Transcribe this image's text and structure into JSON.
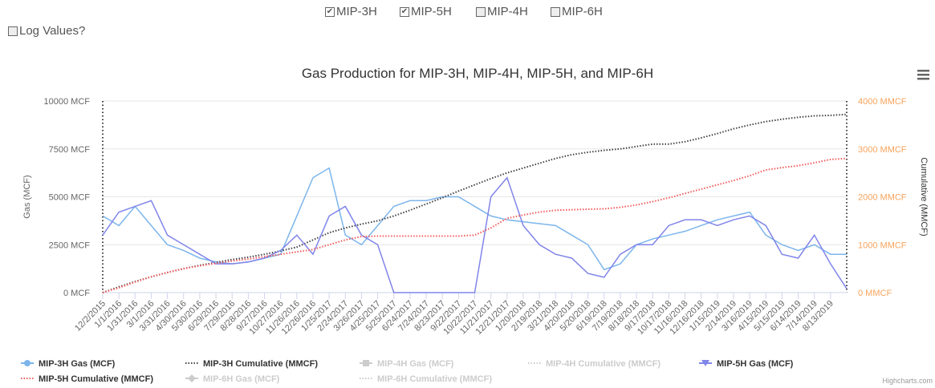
{
  "controls": {
    "wells": [
      {
        "label": "MIP-3H",
        "checked": true
      },
      {
        "label": "MIP-5H",
        "checked": true
      },
      {
        "label": "MIP-4H",
        "checked": false
      },
      {
        "label": "MIP-6H",
        "checked": false
      }
    ],
    "log": {
      "label": "Log Values?",
      "checked": false
    }
  },
  "chart_data": {
    "type": "line",
    "title": "Gas Production for MIP-3H, MIP-4H, MIP-5H, and MIP-6H",
    "y_label": "Gas (MCF)",
    "y2_label": "Cumulative (MMCF)",
    "credit": "Highcharts.com",
    "categories": [
      "12/2/2015",
      "1/1/2016",
      "1/31/2016",
      "3/1/2016",
      "3/31/2016",
      "4/30/2016",
      "5/30/2016",
      "6/29/2016",
      "7/29/2016",
      "8/28/2016",
      "9/27/2016",
      "10/27/2016",
      "11/26/2016",
      "12/26/2016",
      "1/25/2017",
      "2/24/2017",
      "3/26/2017",
      "4/25/2017",
      "5/25/2017",
      "6/24/2017",
      "7/24/2017",
      "8/23/2017",
      "9/22/2017",
      "10/22/2017",
      "11/21/2017",
      "12/21/2017",
      "1/20/2018",
      "2/19/2018",
      "3/21/2018",
      "4/20/2018",
      "5/20/2018",
      "6/19/2018",
      "7/19/2018",
      "8/18/2018",
      "9/17/2018",
      "10/17/2018",
      "11/16/2018",
      "12/16/2018",
      "1/15/2019",
      "2/14/2019",
      "3/16/2019",
      "4/15/2019",
      "5/15/2019",
      "6/14/2019",
      "7/14/2019",
      "8/13/2019",
      null
    ],
    "ylim": [
      0,
      10000
    ],
    "yticks": [
      {
        "value": 0,
        "label": "0 MCF"
      },
      {
        "value": 2500,
        "label": "2500 MCF"
      },
      {
        "value": 5000,
        "label": "5000 MCF"
      },
      {
        "value": 7500,
        "label": "7500 MCF"
      },
      {
        "value": 10000,
        "label": "10000 MCF"
      }
    ],
    "y2lim": [
      0,
      4000
    ],
    "y2ticks": [
      {
        "value": 0,
        "label": "0 MMCF"
      },
      {
        "value": 1000,
        "label": "1000 MMCF"
      },
      {
        "value": 2000,
        "label": "2000 MMCF"
      },
      {
        "value": 3000,
        "label": "3000 MMCF"
      },
      {
        "value": 4000,
        "label": "4000 MMCF"
      }
    ],
    "y2_color": "#f7a35c",
    "grid": true,
    "series": [
      {
        "name": "MIP-3H Gas (MCF)",
        "color": "#7cb5ec",
        "marker": "circle",
        "visible": true,
        "values": [
          4000,
          3500,
          4500,
          3500,
          2500,
          2200,
          1800,
          1600,
          1500,
          1600,
          1800,
          2000,
          4000,
          6000,
          6500,
          3000,
          2500,
          3500,
          4500,
          4800,
          4800,
          5000,
          5000,
          4500,
          4000,
          3800,
          3700,
          3600,
          3500,
          3000,
          2500,
          1200,
          1500,
          2500,
          2800,
          3000,
          3200,
          3500,
          3800,
          4000,
          4200,
          3000,
          2500,
          2200,
          2500,
          2000,
          2000
        ]
      },
      {
        "name": "MIP-3H Cumulative (MMCF)",
        "color": "#434348",
        "dash": "dot",
        "axis": "y2",
        "visible": true,
        "values": [
          0,
          120,
          230,
          330,
          420,
          500,
          570,
          630,
          690,
          740,
          800,
          870,
          950,
          1100,
          1250,
          1350,
          1430,
          1500,
          1600,
          1720,
          1850,
          1980,
          2120,
          2250,
          2380,
          2500,
          2600,
          2700,
          2800,
          2880,
          2930,
          2970,
          3000,
          3050,
          3100,
          3100,
          3150,
          3230,
          3320,
          3420,
          3500,
          3570,
          3620,
          3660,
          3690,
          3700,
          3720
        ]
      },
      {
        "name": "MIP-4H Gas (MCF)",
        "color": "#cccccc",
        "marker": "square",
        "visible": false
      },
      {
        "name": "MIP-4H Cumulative (MMCF)",
        "color": "#cccccc",
        "dash": "dot",
        "axis": "y2",
        "visible": false
      },
      {
        "name": "MIP-5H Gas (MCF)",
        "color": "#8085e9",
        "marker": "triangle-down",
        "visible": true,
        "values": [
          3000,
          4200,
          4500,
          4800,
          3000,
          2500,
          2000,
          1500,
          1500,
          1600,
          1800,
          2200,
          3000,
          2000,
          4000,
          4500,
          3000,
          2500,
          0,
          0,
          0,
          0,
          0,
          0,
          5000,
          6000,
          3500,
          2500,
          2000,
          1800,
          1000,
          800,
          2000,
          2500,
          2500,
          3500,
          3800,
          3800,
          3500,
          3800,
          4000,
          3500,
          2000,
          1800,
          3000,
          1500,
          200
        ]
      },
      {
        "name": "MIP-5H Cumulative (MMCF)",
        "color": "#f45b5b",
        "dash": "dot",
        "axis": "y2",
        "visible": true,
        "values": [
          0,
          100,
          220,
          330,
          420,
          500,
          560,
          610,
          660,
          700,
          750,
          800,
          850,
          900,
          1000,
          1100,
          1170,
          1180,
          1180,
          1180,
          1180,
          1180,
          1180,
          1200,
          1350,
          1550,
          1620,
          1680,
          1720,
          1730,
          1740,
          1750,
          1780,
          1830,
          1900,
          1980,
          2070,
          2160,
          2250,
          2340,
          2440,
          2560,
          2610,
          2650,
          2710,
          2780,
          2800
        ]
      },
      {
        "name": "MIP-6H Gas (MCF)",
        "color": "#cccccc",
        "marker": "diamond",
        "visible": false
      },
      {
        "name": "MIP-6H Cumulative (MMCF)",
        "color": "#cccccc",
        "dash": "dot",
        "axis": "y2",
        "visible": false
      }
    ]
  }
}
